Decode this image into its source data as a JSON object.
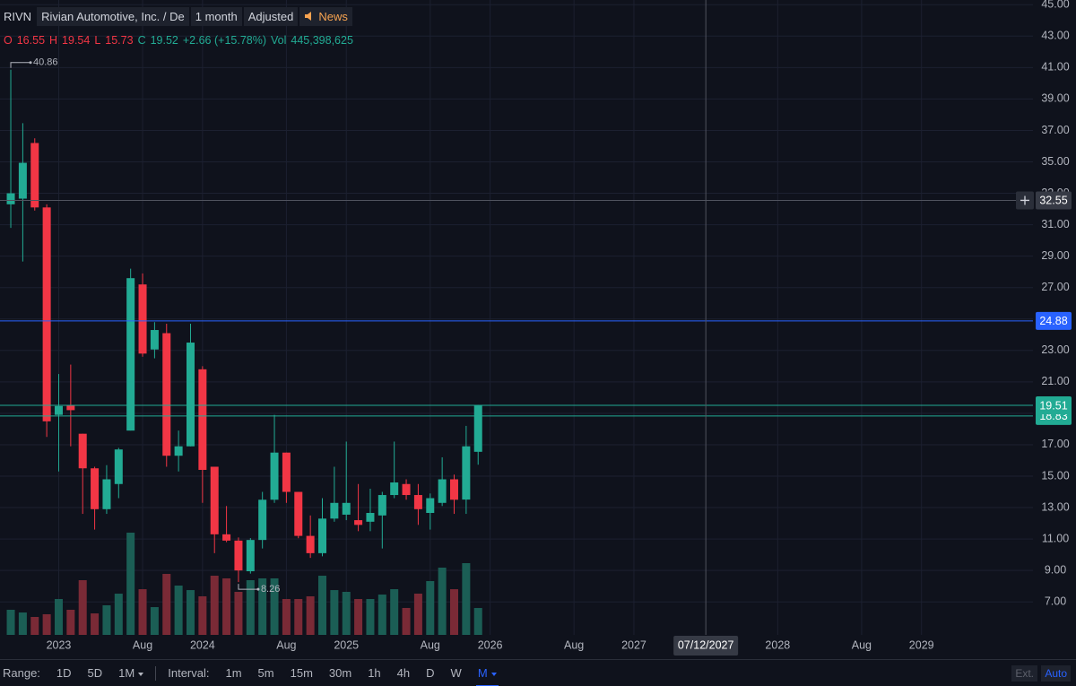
{
  "header": {
    "symbol": "RIVN",
    "name": "Rivian Automotive, Inc. / De",
    "interval": "1 month",
    "adjust": "Adjusted",
    "news": "News",
    "open_label": "O",
    "high_label": "H",
    "low_label": "L",
    "close_label": "C",
    "change": "+2.66 (+15.78%)",
    "vol_label": "Vol",
    "volume": "445,398,625"
  },
  "chart_data": {
    "type": "candlestick",
    "x": [
      0,
      1,
      2,
      3,
      4,
      5,
      6,
      7,
      8,
      9,
      10,
      11,
      12,
      13,
      14,
      15,
      16,
      17,
      18,
      19,
      20,
      21,
      22,
      23,
      24,
      25,
      26,
      27,
      28,
      29,
      30,
      31,
      32,
      33,
      34,
      35,
      36,
      37,
      38,
      39
    ],
    "open": [
      32.3,
      32.66,
      36.2,
      32.1,
      18.9,
      19.51,
      17.7,
      15.5,
      12.9,
      14.5,
      17.9,
      27.2,
      23.06,
      24.1,
      16.3,
      16.9,
      21.8,
      15.6,
      11.3,
      10.9,
      8.95,
      10.94,
      13.5,
      16.5,
      14.0,
      11.2,
      10.1,
      12.3,
      12.55,
      12.2,
      12.1,
      12.5,
      13.8,
      14.5,
      13.8,
      12.66,
      13.3,
      14.8,
      13.51,
      16.55
    ],
    "high": [
      40.86,
      37.46,
      36.5,
      32.3,
      21.5,
      22.1,
      17.7,
      15.6,
      15.7,
      16.8,
      28.2,
      27.9,
      24.8,
      24.7,
      17.9,
      24.7,
      22.0,
      15.6,
      13.1,
      11.1,
      11.06,
      14.0,
      18.9,
      16.5,
      14.0,
      12.5,
      13.6,
      15.6,
      17.2,
      14.5,
      14.2,
      14.0,
      17.2,
      14.8,
      14.5,
      13.9,
      16.2,
      15.1,
      18.2,
      19.54
    ],
    "low": [
      30.8,
      28.66,
      31.9,
      17.5,
      15.3,
      16.9,
      12.6,
      11.6,
      12.6,
      13.6,
      17.9,
      22.6,
      22.5,
      15.6,
      15.3,
      16.9,
      13.3,
      10.1,
      10.8,
      8.26,
      8.8,
      10.4,
      13.3,
      13.3,
      11.05,
      9.8,
      9.9,
      12.1,
      12.2,
      11.5,
      11.5,
      10.4,
      13.6,
      13.5,
      11.9,
      11.6,
      13.1,
      12.6,
      12.6,
      15.73
    ],
    "close": [
      33.0,
      34.94,
      32.1,
      18.49,
      19.46,
      19.2,
      15.5,
      12.9,
      14.8,
      16.7,
      27.6,
      22.8,
      24.3,
      16.3,
      16.9,
      23.5,
      15.4,
      11.3,
      10.9,
      9.0,
      10.94,
      13.5,
      16.5,
      14.0,
      11.2,
      10.1,
      12.3,
      13.3,
      13.3,
      11.9,
      12.66,
      13.8,
      14.6,
      13.8,
      12.9,
      13.6,
      14.8,
      13.5,
      16.9,
      19.52
    ],
    "volume": [
      416000000,
      371000000,
      297000000,
      342000000,
      594000000,
      416000000,
      906000000,
      356000000,
      490000000,
      683000000,
      1693000000,
      757000000,
      460000000,
      1010000000,
      817000000,
      742000000,
      639000000,
      980000000,
      936000000,
      713000000,
      906000000,
      936000000,
      936000000,
      594000000,
      594000000,
      639000000,
      980000000,
      742000000,
      713000000,
      594000000,
      594000000,
      668000000,
      757000000,
      446000000,
      683000000,
      891000000,
      1114000000,
      757000000,
      1188000000,
      445398625
    ],
    "up_color": "#22ab94",
    "down_color": "#f23645",
    "up_volume_color": "#1b5e55",
    "down_volume_color": "#7a2a36",
    "xlim": [
      -0.9,
      85.3
    ],
    "xticks": [
      {
        "value": 4,
        "label": "2023"
      },
      {
        "value": 11,
        "label": "Aug"
      },
      {
        "value": 16,
        "label": "2024"
      },
      {
        "value": 23,
        "label": "Aug"
      },
      {
        "value": 28,
        "label": "2025"
      },
      {
        "value": 35,
        "label": "Aug"
      },
      {
        "value": 40,
        "label": "2026"
      },
      {
        "value": 47,
        "label": "Aug"
      },
      {
        "value": 52,
        "label": "2027"
      },
      {
        "value": 64,
        "label": "2028"
      },
      {
        "value": 71,
        "label": "Aug"
      },
      {
        "value": 76,
        "label": "2029"
      }
    ],
    "ylim": [
      4.9,
      45.3
    ],
    "yticks": [
      {
        "value": 7,
        "label": "7.00"
      },
      {
        "value": 9,
        "label": "9.00"
      },
      {
        "value": 11,
        "label": "11.00"
      },
      {
        "value": 13,
        "label": "13.00"
      },
      {
        "value": 15,
        "label": "15.00"
      },
      {
        "value": 17,
        "label": "17.00"
      },
      {
        "value": 19,
        "label": "19.00"
      },
      {
        "value": 21,
        "label": "21.00"
      },
      {
        "value": 23,
        "label": "23.00"
      },
      {
        "value": 25,
        "label": "25.00"
      },
      {
        "value": 27,
        "label": "27.00"
      },
      {
        "value": 29,
        "label": "29.00"
      },
      {
        "value": 31,
        "label": "31.00"
      },
      {
        "value": 33,
        "label": "33.00"
      },
      {
        "value": 35,
        "label": "35.00"
      },
      {
        "value": 37,
        "label": "37.00"
      },
      {
        "value": 39,
        "label": "39.00"
      },
      {
        "value": 41,
        "label": "41.00"
      },
      {
        "value": 43,
        "label": "43.00"
      },
      {
        "value": 45,
        "label": "45.00"
      }
    ],
    "grid": true,
    "price_lines": [
      {
        "value": 24.88,
        "color": "#2962ff"
      },
      {
        "value": 18.83,
        "color": "#22ab94"
      },
      {
        "value": 19.51,
        "color": "#22ab94"
      }
    ],
    "crosshair": {
      "x": 58,
      "x_label": "07/12/2027",
      "y": 32.55
    }
  },
  "toolbar": {
    "range_label": "Range:",
    "ranges": [
      "1D",
      "5D",
      "1M"
    ],
    "interval_label": "Interval:",
    "intervals": [
      "1m",
      "5m",
      "15m",
      "30m",
      "1h",
      "4h",
      "D",
      "W",
      "M"
    ],
    "ext": "Ext.",
    "auto": "Auto"
  }
}
